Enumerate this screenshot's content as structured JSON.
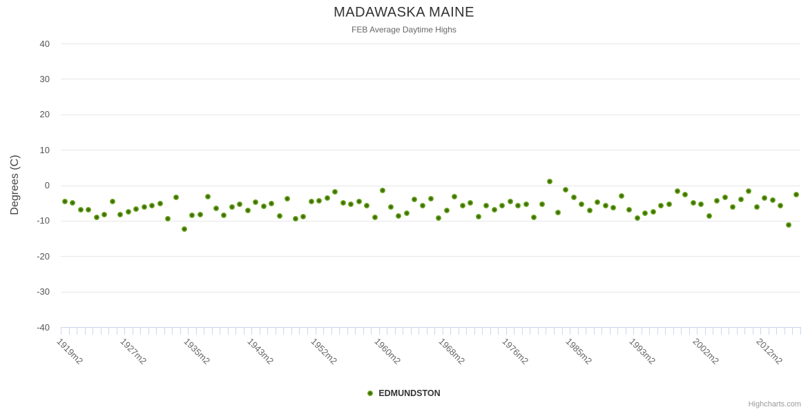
{
  "credits": "Highcharts.com",
  "colors": {
    "series_green": "#74af28",
    "series_green_dark_center": "#305d06",
    "gridline": "#e6e6e6",
    "axis_line_and_ticks": "#ccd6eb",
    "title_text": "#333333",
    "subtitle_text": "#666666",
    "axis_label_text": "#555555",
    "credits_text": "#999999"
  },
  "chart_data": {
    "type": "scatter",
    "title": "MADAWASKA MAINE",
    "subtitle": "FEB Average Daytime Highs",
    "ylabel": "Degrees (C)",
    "xlabel": "",
    "ylim": [
      -40,
      40
    ],
    "y_ticks": [
      40,
      30,
      20,
      10,
      0,
      -10,
      -20,
      -30,
      -40
    ],
    "grid": "horizontal-only",
    "legend_position": "bottom-center",
    "x_tick_labels": [
      "1919m2",
      "1927m2",
      "1935m2",
      "1943m2",
      "1952m2",
      "1960m2",
      "1968m2",
      "1976m2",
      "1985m2",
      "1993m2",
      "2002m2",
      "2012m2"
    ],
    "x_label_category_indices": [
      0,
      8,
      16,
      24,
      32,
      40,
      48,
      56,
      64,
      72,
      80,
      88
    ],
    "x_label_rotation_deg": 45,
    "n_points": 93,
    "series": [
      {
        "name": "EDMUNDSTON",
        "color": "#74af28",
        "values": [
          -4.6,
          -5.0,
          -6.9,
          -7.0,
          -9.0,
          -8.3,
          -4.6,
          -8.2,
          -7.5,
          -6.8,
          -6.2,
          -5.7,
          -5.1,
          -9.4,
          -3.5,
          -12.3,
          -8.5,
          -8.2,
          -3.2,
          -6.6,
          -8.4,
          -6.1,
          -5.3,
          -7.2,
          -4.8,
          -5.9,
          -5.1,
          -8.7,
          -3.8,
          -9.4,
          -8.8,
          -4.6,
          -4.4,
          -3.6,
          -1.8,
          -4.9,
          -5.4,
          -4.5,
          -5.7,
          -9.0,
          -1.5,
          -6.1,
          -8.6,
          -7.9,
          -4.0,
          -5.8,
          -3.8,
          -9.2,
          -7.2,
          -3.3,
          -5.8,
          -4.9,
          -8.9,
          -5.8,
          -6.9,
          -5.7,
          -4.5,
          -5.8,
          -5.3,
          -9.0,
          -5.3,
          1.1,
          -7.7,
          -1.2,
          -3.5,
          -5.4,
          -7.1,
          -4.8,
          -5.7,
          -6.3,
          -3.0,
          -6.9,
          -9.3,
          -7.9,
          -7.4,
          -5.7,
          -5.3,
          -1.7,
          -2.7,
          -5.0,
          -5.4,
          -8.7,
          -4.3,
          -3.5,
          -6.1,
          -4.0,
          -1.6,
          -6.1,
          -3.6,
          -4.1,
          -5.7,
          -11.1,
          -2.7
        ]
      }
    ]
  }
}
